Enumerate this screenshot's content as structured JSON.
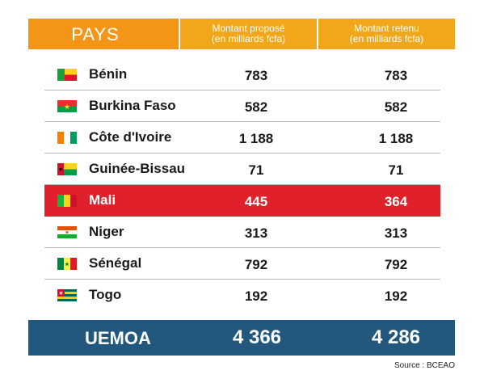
{
  "header": {
    "pays": "PAYS",
    "col1_line1": "Montant proposé",
    "col1_line2": "(en milliards fcfa)",
    "col2_line1": "Montant retenu",
    "col2_line2": "(en milliards fcfa)"
  },
  "rows": [
    {
      "country": "Bénin",
      "proposed": "783",
      "retained": "783"
    },
    {
      "country": "Burkina Faso",
      "proposed": "582",
      "retained": "582"
    },
    {
      "country": "Côte d'Ivoire",
      "proposed": "1 188",
      "retained": "1 188"
    },
    {
      "country": "Guinée-Bissau",
      "proposed": "71",
      "retained": "71"
    },
    {
      "country": "Mali",
      "proposed": "445",
      "retained": "364"
    },
    {
      "country": "Niger",
      "proposed": "313",
      "retained": "313"
    },
    {
      "country": "Sénégal",
      "proposed": "792",
      "retained": "792"
    },
    {
      "country": "Togo",
      "proposed": "192",
      "retained": "192"
    }
  ],
  "total": {
    "label": "UEMOA",
    "proposed": "4 366",
    "retained": "4 286"
  },
  "source": "Source : BCEAO",
  "colors": {
    "header_orange": "#f39617",
    "header_yellow": "#f2a71b",
    "highlight_red": "#e0202a",
    "total_blue": "#23587e"
  }
}
